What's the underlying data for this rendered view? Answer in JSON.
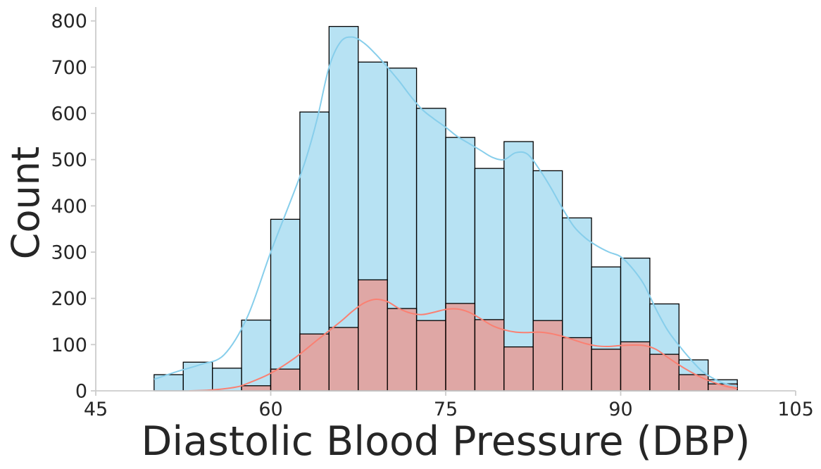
{
  "chart_data": {
    "type": "histogram",
    "title": "",
    "xlabel": "Diastolic Blood Pressure (DBP)",
    "ylabel": "Count",
    "xlim": [
      45,
      105
    ],
    "ylim": [
      0,
      830
    ],
    "xticks": [
      45,
      60,
      75,
      90,
      105
    ],
    "yticks": [
      0,
      100,
      200,
      300,
      400,
      500,
      600,
      700,
      800
    ],
    "grid": false,
    "legend": "none",
    "bin_edges": [
      50,
      52.5,
      55,
      57.5,
      60,
      62.5,
      65,
      67.5,
      70,
      72.5,
      75,
      77.5,
      80,
      82.5,
      85,
      87.5,
      90,
      92.5,
      95,
      97.5,
      100
    ],
    "series": [
      {
        "color": "#87CEEB",
        "counts": [
          35,
          62,
          49,
          153,
          371,
          603,
          788,
          711,
          698,
          611,
          548,
          481,
          539,
          476,
          374,
          268,
          287,
          188,
          67,
          24
        ],
        "kde_x": [
          50,
          52,
          54,
          56,
          58,
          60,
          62,
          63,
          64,
          65,
          66,
          67,
          68,
          69,
          70,
          71,
          72,
          73,
          74,
          75,
          76,
          77,
          78,
          79,
          80,
          81,
          82,
          83,
          84,
          85,
          86,
          87,
          88,
          89,
          90,
          91,
          92,
          93,
          94,
          95,
          96,
          97,
          98,
          99,
          100
        ],
        "kde_y": [
          25,
          42,
          57,
          78,
          160,
          300,
          430,
          500,
          590,
          700,
          755,
          765,
          752,
          728,
          700,
          670,
          637,
          608,
          588,
          570,
          550,
          535,
          520,
          505,
          500,
          515,
          512,
          480,
          440,
          395,
          355,
          330,
          313,
          300,
          290,
          265,
          230,
          178,
          132,
          98,
          68,
          42,
          26,
          15,
          10
        ]
      },
      {
        "color": "#FA8072",
        "counts": [
          0,
          0,
          0,
          11,
          47,
          123,
          137,
          240,
          178,
          152,
          189,
          154,
          95,
          152,
          115,
          90,
          106,
          79,
          35,
          15
        ],
        "kde_x": [
          53,
          55,
          57,
          58,
          60,
          62,
          64,
          66,
          67,
          68,
          69,
          70,
          71,
          72,
          73,
          74,
          75,
          76,
          77,
          78,
          79,
          80,
          81,
          82,
          83,
          84,
          85,
          86,
          87,
          88,
          89,
          90,
          91,
          92,
          93,
          94,
          95,
          96,
          97,
          98,
          99,
          100
        ],
        "kde_y": [
          0,
          2,
          8,
          16,
          38,
          70,
          110,
          150,
          172,
          190,
          198,
          193,
          178,
          168,
          165,
          170,
          176,
          177,
          170,
          156,
          141,
          132,
          127,
          126,
          127,
          124,
          118,
          110,
          102,
          97,
          96,
          98,
          99,
          98,
          90,
          73,
          56,
          41,
          28,
          18,
          10,
          5
        ]
      }
    ]
  }
}
